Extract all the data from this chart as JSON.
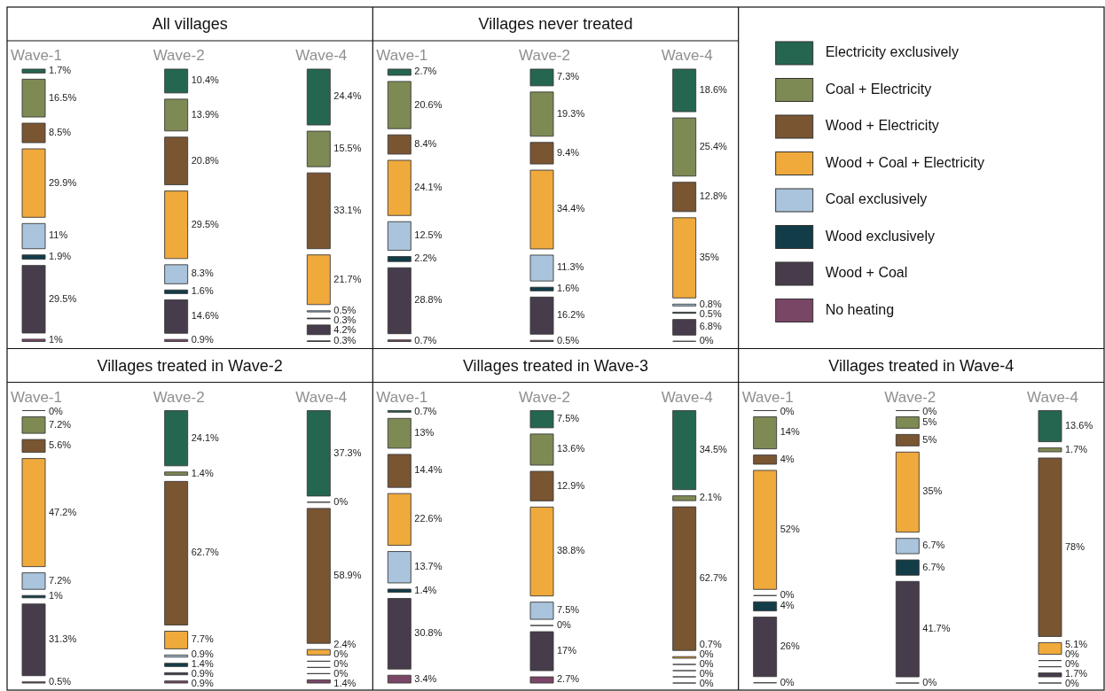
{
  "chart_data": [
    {
      "type": "other",
      "title": "All villages",
      "categories": [
        "Wave-1",
        "Wave-2",
        "Wave-4"
      ],
      "series": [
        {
          "color": "#256651",
          "values": [
            1.7,
            10.4,
            24.4
          ],
          "value_labels": [
            "1.7%",
            "10.4%",
            "24.4%"
          ]
        },
        {
          "color": "#7e8a53",
          "values": [
            16.5,
            13.9,
            15.5
          ],
          "value_labels": [
            "16.5%",
            "13.9%",
            "15.5%"
          ]
        },
        {
          "color": "#7a5532",
          "values": [
            8.5,
            20.8,
            33.1
          ],
          "value_labels": [
            "8.5%",
            "20.8%",
            "33.1%"
          ]
        },
        {
          "color": "#f0aa3c",
          "values": [
            29.9,
            29.5,
            21.7
          ],
          "value_labels": [
            "29.9%",
            "29.5%",
            "21.7%"
          ]
        },
        {
          "color": "#a9c4dc",
          "values": [
            11,
            8.3,
            0.5
          ],
          "value_labels": [
            "11%",
            "8.3%",
            "0.5%"
          ]
        },
        {
          "color": "#113c48",
          "values": [
            1.9,
            1.6,
            0.3
          ],
          "value_labels": [
            "1.9%",
            "1.6%",
            "0.3%"
          ]
        },
        {
          "color": "#473c4b",
          "values": [
            29.5,
            14.6,
            4.2
          ],
          "value_labels": [
            "29.5%",
            "14.6%",
            "4.2%"
          ]
        },
        {
          "color": "#7a4666",
          "values": [
            1,
            0.9,
            0.3
          ],
          "value_labels": [
            "1%",
            "0.9%",
            "0.3%"
          ]
        }
      ]
    },
    {
      "type": "other",
      "title": "Villages never treated",
      "categories": [
        "Wave-1",
        "Wave-2",
        "Wave-4"
      ],
      "legend": "right",
      "series": [
        {
          "name": "Electricity exclusively",
          "color": "#256651",
          "values": [
            2.7,
            7.3,
            18.6
          ],
          "value_labels": [
            "2.7%",
            "7.3%",
            "18.6%"
          ]
        },
        {
          "name": "Coal + Electricity",
          "color": "#7e8a53",
          "values": [
            20.6,
            19.3,
            25.4
          ],
          "value_labels": [
            "20.6%",
            "19.3%",
            "25.4%"
          ]
        },
        {
          "name": "Wood + Electricity",
          "color": "#7a5532",
          "values": [
            8.4,
            9.4,
            12.8
          ],
          "value_labels": [
            "8.4%",
            "9.4%",
            "12.8%"
          ]
        },
        {
          "name": "Wood + Coal + Electricity",
          "color": "#f0aa3c",
          "values": [
            24.1,
            34.4,
            35
          ],
          "value_labels": [
            "24.1%",
            "34.4%",
            "35%"
          ]
        },
        {
          "name": "Coal exclusively",
          "color": "#a9c4dc",
          "values": [
            12.5,
            11.3,
            0.8
          ],
          "value_labels": [
            "12.5%",
            "11.3%",
            "0.8%"
          ]
        },
        {
          "name": "Wood exclusively",
          "color": "#113c48",
          "values": [
            2.2,
            1.6,
            0.5
          ],
          "value_labels": [
            "2.2%",
            "1.6%",
            "0.5%"
          ]
        },
        {
          "name": "Wood + Coal",
          "color": "#473c4b",
          "values": [
            28.8,
            16.2,
            6.8
          ],
          "value_labels": [
            "28.8%",
            "16.2%",
            "6.8%"
          ]
        },
        {
          "name": "No heating",
          "color": "#7a4666",
          "values": [
            0.7,
            0.5,
            0
          ],
          "value_labels": [
            "0.7%",
            "0.5%",
            "0%"
          ]
        }
      ]
    },
    {
      "type": "other",
      "title": "Villages treated in Wave-2",
      "categories": [
        "Wave-1",
        "Wave-2",
        "Wave-4"
      ],
      "series": [
        {
          "color": "#256651",
          "values": [
            0,
            24.1,
            37.3
          ],
          "value_labels": [
            "0%",
            "24.1%",
            "37.3%"
          ]
        },
        {
          "color": "#7e8a53",
          "values": [
            7.2,
            1.4,
            0
          ],
          "value_labels": [
            "7.2%",
            "1.4%",
            "0%"
          ]
        },
        {
          "color": "#7a5532",
          "values": [
            5.6,
            62.7,
            58.9
          ],
          "value_labels": [
            "5.6%",
            "62.7%",
            "58.9%"
          ]
        },
        {
          "color": "#f0aa3c",
          "values": [
            47.2,
            7.7,
            2.4
          ],
          "value_labels": [
            "47.2%",
            "7.7%",
            "2.4%"
          ]
        },
        {
          "color": "#a9c4dc",
          "values": [
            7.2,
            0.9,
            0
          ],
          "value_labels": [
            "7.2%",
            "0.9%",
            "0%"
          ]
        },
        {
          "color": "#113c48",
          "values": [
            1,
            1.4,
            0
          ],
          "value_labels": [
            "1%",
            "1.4%",
            "0%"
          ]
        },
        {
          "color": "#473c4b",
          "values": [
            31.3,
            0.9,
            0
          ],
          "value_labels": [
            "31.3%",
            "0.9%",
            "0%"
          ]
        },
        {
          "color": "#7a4666",
          "values": [
            0.5,
            0.9,
            1.4
          ],
          "value_labels": [
            "0.5%",
            "0.9%",
            "1.4%"
          ]
        }
      ]
    },
    {
      "type": "other",
      "title": "Villages treated in Wave-3",
      "categories": [
        "Wave-1",
        "Wave-2",
        "Wave-4"
      ],
      "series": [
        {
          "color": "#256651",
          "values": [
            0.7,
            7.5,
            34.5
          ],
          "value_labels": [
            "0.7%",
            "7.5%",
            "34.5%"
          ]
        },
        {
          "color": "#7e8a53",
          "values": [
            13,
            13.6,
            2.1
          ],
          "value_labels": [
            "13%",
            "13.6%",
            "2.1%"
          ]
        },
        {
          "color": "#7a5532",
          "values": [
            14.4,
            12.9,
            62.7
          ],
          "value_labels": [
            "14.4%",
            "12.9%",
            "62.7%"
          ]
        },
        {
          "color": "#f0aa3c",
          "values": [
            22.6,
            38.8,
            0.7
          ],
          "value_labels": [
            "22.6%",
            "38.8%",
            "0.7%"
          ]
        },
        {
          "color": "#a9c4dc",
          "values": [
            13.7,
            7.5,
            0
          ],
          "value_labels": [
            "13.7%",
            "7.5%",
            "0%"
          ]
        },
        {
          "color": "#113c48",
          "values": [
            1.4,
            0,
            0
          ],
          "value_labels": [
            "1.4%",
            "0%",
            "0%"
          ]
        },
        {
          "color": "#473c4b",
          "values": [
            30.8,
            17,
            0
          ],
          "value_labels": [
            "30.8%",
            "17%",
            "0%"
          ]
        },
        {
          "color": "#7a4666",
          "values": [
            3.4,
            2.7,
            0
          ],
          "value_labels": [
            "3.4%",
            "2.7%",
            "0%"
          ]
        }
      ]
    },
    {
      "type": "other",
      "title": "Villages treated in Wave-4",
      "categories": [
        "Wave-1",
        "Wave-2",
        "Wave-4"
      ],
      "series": [
        {
          "color": "#256651",
          "values": [
            0,
            0,
            13.6
          ],
          "value_labels": [
            "0%",
            "0%",
            "13.6%"
          ]
        },
        {
          "color": "#7e8a53",
          "values": [
            14,
            5,
            1.7
          ],
          "value_labels": [
            "14%",
            "5%",
            "1.7%"
          ]
        },
        {
          "color": "#7a5532",
          "values": [
            4,
            5,
            78
          ],
          "value_labels": [
            "4%",
            "5%",
            "78%"
          ]
        },
        {
          "color": "#f0aa3c",
          "values": [
            52,
            35,
            5.1
          ],
          "value_labels": [
            "52%",
            "35%",
            "5.1%"
          ]
        },
        {
          "color": "#a9c4dc",
          "values": [
            0,
            6.7,
            0
          ],
          "value_labels": [
            "0%",
            "6.7%",
            "0%"
          ]
        },
        {
          "color": "#113c48",
          "values": [
            4,
            6.7,
            0
          ],
          "value_labels": [
            "4%",
            "6.7%",
            "0%"
          ]
        },
        {
          "color": "#473c4b",
          "values": [
            26,
            41.7,
            1.7
          ],
          "value_labels": [
            "26%",
            "41.7%",
            "1.7%"
          ]
        },
        {
          "color": "#7a4666",
          "values": [
            0,
            0,
            0
          ],
          "value_labels": [
            "0%",
            "0%",
            "0%"
          ]
        }
      ]
    }
  ]
}
